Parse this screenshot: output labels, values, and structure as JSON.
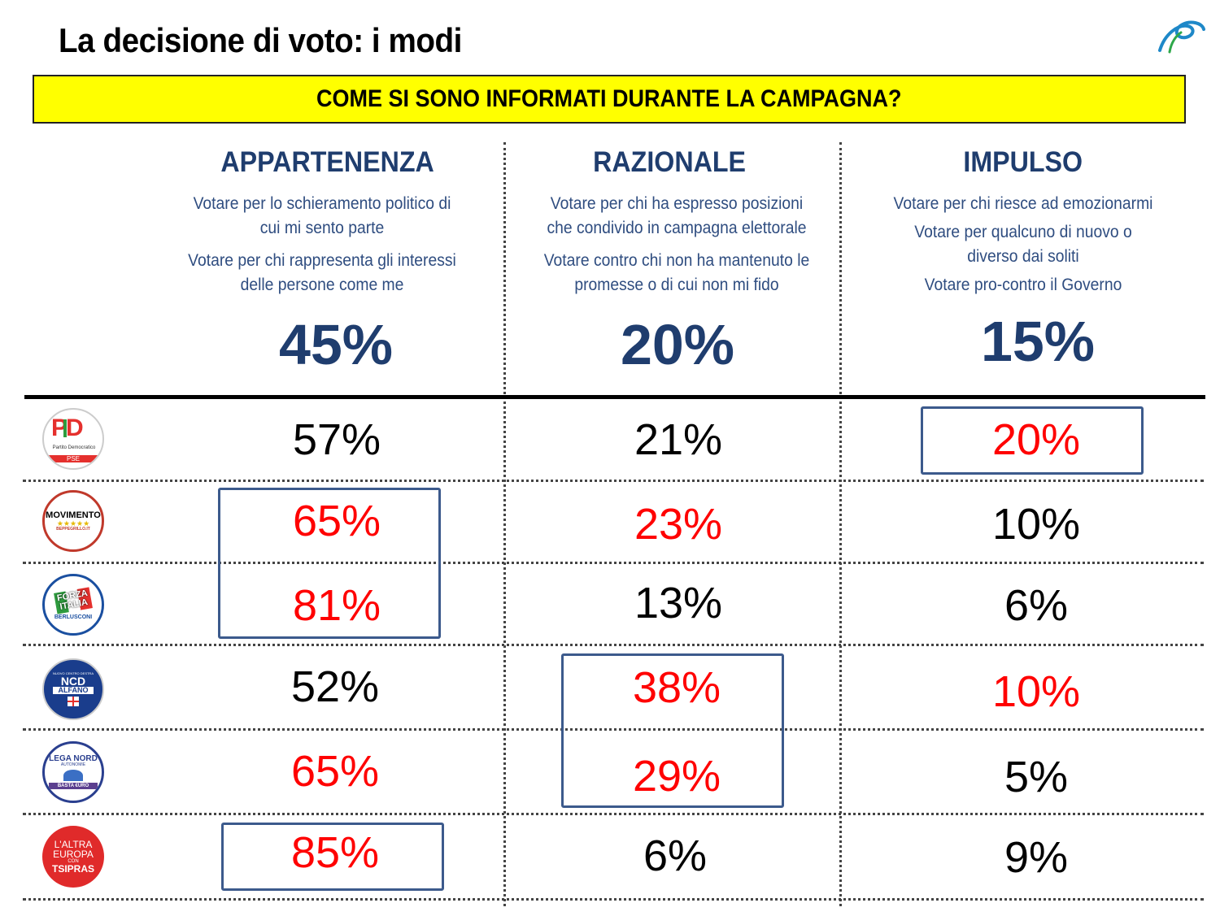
{
  "title": "La decisione di voto: i modi",
  "banner": "COME SI SONO INFORMATI DURANTE LA CAMPAGNA?",
  "columns": [
    {
      "heading": "APPARTENENZA",
      "lines": [
        "Votare per lo schieramento politico di",
        "cui mi sento parte",
        "Votare per chi rappresenta gli interessi",
        "delle persone come me"
      ],
      "total": "45%"
    },
    {
      "heading": "RAZIONALE",
      "lines": [
        "Votare per chi ha espresso posizioni",
        "che condivido in campagna elettorale",
        "Votare contro chi non ha mantenuto le",
        "promesse o di cui non mi fido"
      ],
      "total": "20%"
    },
    {
      "heading": "IMPULSO",
      "lines": [
        "Votare per chi riesce ad emozionarmi",
        "Votare per qualcuno di nuovo o",
        "diverso dai soliti",
        "Votare pro-contro il Governo"
      ],
      "total": "15%"
    }
  ],
  "parties": [
    {
      "logo_text": [
        "PD",
        "Partito Democratico",
        "PSE"
      ],
      "values": [
        "57%",
        "21%",
        "20%"
      ],
      "highlight": [
        false,
        false,
        true
      ]
    },
    {
      "logo_text": [
        "MOVIMENTO",
        "★★★★★",
        "BEPPEGRILLO.IT"
      ],
      "values": [
        "65%",
        "23%",
        "10%"
      ],
      "highlight": [
        true,
        true,
        false
      ]
    },
    {
      "logo_text": [
        "FORZA",
        "ITALIA",
        "BERLUSCONI"
      ],
      "values": [
        "81%",
        "13%",
        "6%"
      ],
      "highlight": [
        true,
        false,
        false
      ]
    },
    {
      "logo_text": [
        "NUOVO CENTRO DESTRA",
        "NCD",
        "ALFANO"
      ],
      "values": [
        "52%",
        "38%",
        "10%"
      ],
      "highlight": [
        false,
        true,
        true
      ]
    },
    {
      "logo_text": [
        "LEGA NORD",
        "AUTONOMIE",
        "BASTA €URO"
      ],
      "values": [
        "65%",
        "29%",
        "5%"
      ],
      "highlight": [
        true,
        true,
        false
      ]
    },
    {
      "logo_text": [
        "L'ALTRA",
        "EUROPA",
        "CON",
        "TSIPRAS"
      ],
      "values": [
        "85%",
        "6%",
        "9%"
      ],
      "highlight": [
        true,
        false,
        false
      ]
    }
  ],
  "colors": {
    "highlight": "#ff0000",
    "heading": "#1f3d6e",
    "banner": "#ffff00",
    "box": "#3c5a8c"
  }
}
